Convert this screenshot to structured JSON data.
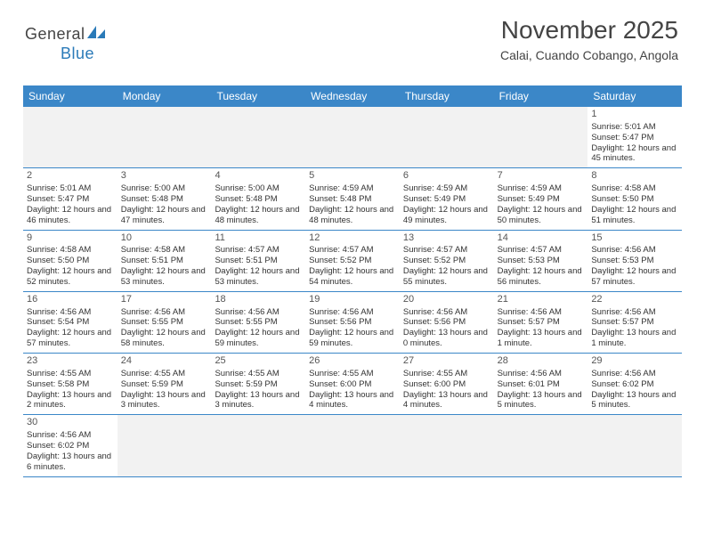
{
  "logo": {
    "text1": "General",
    "text2": "Blue"
  },
  "header": {
    "month": "November 2025",
    "location": "Calai, Cuando Cobango, Angola"
  },
  "colors": {
    "headerBg": "#3b87c8",
    "headerText": "#ffffff",
    "rowBorder": "#3b87c8",
    "emptyBg": "#f2f2f2",
    "textColor": "#333333"
  },
  "dayNames": [
    "Sunday",
    "Monday",
    "Tuesday",
    "Wednesday",
    "Thursday",
    "Friday",
    "Saturday"
  ],
  "weeks": [
    [
      null,
      null,
      null,
      null,
      null,
      null,
      {
        "n": "1",
        "sr": "5:01 AM",
        "ss": "5:47 PM",
        "dl": "12 hours and 45 minutes."
      }
    ],
    [
      {
        "n": "2",
        "sr": "5:01 AM",
        "ss": "5:47 PM",
        "dl": "12 hours and 46 minutes."
      },
      {
        "n": "3",
        "sr": "5:00 AM",
        "ss": "5:48 PM",
        "dl": "12 hours and 47 minutes."
      },
      {
        "n": "4",
        "sr": "5:00 AM",
        "ss": "5:48 PM",
        "dl": "12 hours and 48 minutes."
      },
      {
        "n": "5",
        "sr": "4:59 AM",
        "ss": "5:48 PM",
        "dl": "12 hours and 48 minutes."
      },
      {
        "n": "6",
        "sr": "4:59 AM",
        "ss": "5:49 PM",
        "dl": "12 hours and 49 minutes."
      },
      {
        "n": "7",
        "sr": "4:59 AM",
        "ss": "5:49 PM",
        "dl": "12 hours and 50 minutes."
      },
      {
        "n": "8",
        "sr": "4:58 AM",
        "ss": "5:50 PM",
        "dl": "12 hours and 51 minutes."
      }
    ],
    [
      {
        "n": "9",
        "sr": "4:58 AM",
        "ss": "5:50 PM",
        "dl": "12 hours and 52 minutes."
      },
      {
        "n": "10",
        "sr": "4:58 AM",
        "ss": "5:51 PM",
        "dl": "12 hours and 53 minutes."
      },
      {
        "n": "11",
        "sr": "4:57 AM",
        "ss": "5:51 PM",
        "dl": "12 hours and 53 minutes."
      },
      {
        "n": "12",
        "sr": "4:57 AM",
        "ss": "5:52 PM",
        "dl": "12 hours and 54 minutes."
      },
      {
        "n": "13",
        "sr": "4:57 AM",
        "ss": "5:52 PM",
        "dl": "12 hours and 55 minutes."
      },
      {
        "n": "14",
        "sr": "4:57 AM",
        "ss": "5:53 PM",
        "dl": "12 hours and 56 minutes."
      },
      {
        "n": "15",
        "sr": "4:56 AM",
        "ss": "5:53 PM",
        "dl": "12 hours and 57 minutes."
      }
    ],
    [
      {
        "n": "16",
        "sr": "4:56 AM",
        "ss": "5:54 PM",
        "dl": "12 hours and 57 minutes."
      },
      {
        "n": "17",
        "sr": "4:56 AM",
        "ss": "5:55 PM",
        "dl": "12 hours and 58 minutes."
      },
      {
        "n": "18",
        "sr": "4:56 AM",
        "ss": "5:55 PM",
        "dl": "12 hours and 59 minutes."
      },
      {
        "n": "19",
        "sr": "4:56 AM",
        "ss": "5:56 PM",
        "dl": "12 hours and 59 minutes."
      },
      {
        "n": "20",
        "sr": "4:56 AM",
        "ss": "5:56 PM",
        "dl": "13 hours and 0 minutes."
      },
      {
        "n": "21",
        "sr": "4:56 AM",
        "ss": "5:57 PM",
        "dl": "13 hours and 1 minute."
      },
      {
        "n": "22",
        "sr": "4:56 AM",
        "ss": "5:57 PM",
        "dl": "13 hours and 1 minute."
      }
    ],
    [
      {
        "n": "23",
        "sr": "4:55 AM",
        "ss": "5:58 PM",
        "dl": "13 hours and 2 minutes."
      },
      {
        "n": "24",
        "sr": "4:55 AM",
        "ss": "5:59 PM",
        "dl": "13 hours and 3 minutes."
      },
      {
        "n": "25",
        "sr": "4:55 AM",
        "ss": "5:59 PM",
        "dl": "13 hours and 3 minutes."
      },
      {
        "n": "26",
        "sr": "4:55 AM",
        "ss": "6:00 PM",
        "dl": "13 hours and 4 minutes."
      },
      {
        "n": "27",
        "sr": "4:55 AM",
        "ss": "6:00 PM",
        "dl": "13 hours and 4 minutes."
      },
      {
        "n": "28",
        "sr": "4:56 AM",
        "ss": "6:01 PM",
        "dl": "13 hours and 5 minutes."
      },
      {
        "n": "29",
        "sr": "4:56 AM",
        "ss": "6:02 PM",
        "dl": "13 hours and 5 minutes."
      }
    ],
    [
      {
        "n": "30",
        "sr": "4:56 AM",
        "ss": "6:02 PM",
        "dl": "13 hours and 6 minutes."
      },
      null,
      null,
      null,
      null,
      null,
      null
    ]
  ],
  "labels": {
    "sunrise": "Sunrise:",
    "sunset": "Sunset:",
    "daylight": "Daylight:"
  }
}
